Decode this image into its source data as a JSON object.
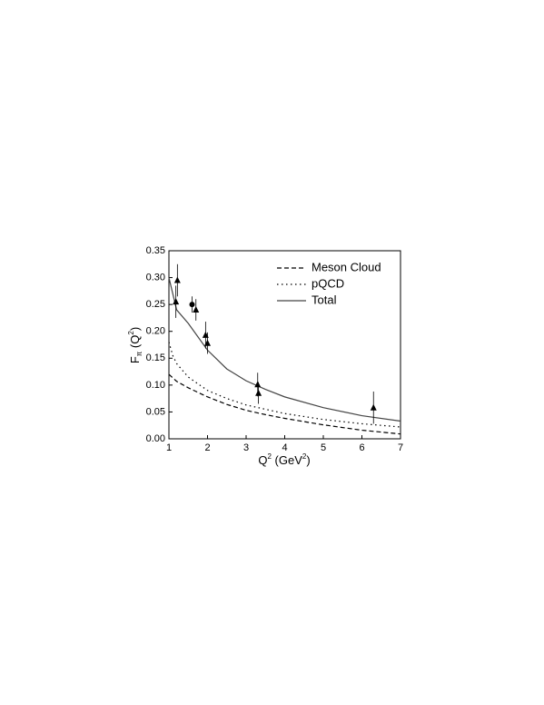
{
  "chart_data": {
    "type": "line",
    "x_label": [
      "Q",
      "2",
      " (GeV",
      "2",
      ")"
    ],
    "y_label": [
      "F",
      "π",
      " (Q",
      "2",
      ")"
    ],
    "xlim": [
      1,
      7
    ],
    "xticks": [
      1,
      2,
      3,
      4,
      5,
      6,
      7
    ],
    "ylim": [
      0,
      0.35
    ],
    "yticks": [
      {
        "value": 0,
        "label": "0.00"
      },
      {
        "value": 0.05,
        "label": "0.05"
      },
      {
        "value": 0.1,
        "label": "0.10"
      },
      {
        "value": 0.15,
        "label": "0.15"
      },
      {
        "value": 0.2,
        "label": "0.20"
      },
      {
        "value": 0.25,
        "label": "0.25"
      },
      {
        "value": 0.3,
        "label": "0.30"
      },
      {
        "value": 0.35,
        "label": "0.35"
      }
    ],
    "legend": "upper right",
    "series": [
      {
        "name": "Meson Cloud",
        "color": "#000000",
        "style": "dashed",
        "x": [
          1,
          1.2,
          1.5,
          2,
          2.5,
          3,
          3.5,
          4,
          5,
          6,
          7
        ],
        "values": [
          0.12,
          0.107,
          0.095,
          0.078,
          0.064,
          0.053,
          0.045,
          0.038,
          0.026,
          0.016,
          0.009
        ]
      },
      {
        "name": "pQCD",
        "color": "#000000",
        "style": "dotted",
        "x": [
          1,
          1.1,
          1.2,
          1.5,
          2,
          2.5,
          3,
          4,
          5,
          6,
          7
        ],
        "values": [
          0.18,
          0.155,
          0.14,
          0.115,
          0.09,
          0.075,
          0.063,
          0.047,
          0.036,
          0.028,
          0.022
        ]
      },
      {
        "name": "Total",
        "color": "#444444",
        "style": "solid",
        "x": [
          1,
          1.1,
          1.2,
          1.5,
          2,
          2.5,
          3,
          3.5,
          4,
          5,
          6,
          7
        ],
        "values": [
          0.3,
          0.27,
          0.24,
          0.215,
          0.165,
          0.13,
          0.108,
          0.092,
          0.078,
          0.058,
          0.043,
          0.033
        ]
      }
    ],
    "markers": [
      {
        "marker": "triangle",
        "color": "#000000",
        "x": [
          1.18,
          1.22,
          1.7,
          1.95,
          2.0,
          3.3,
          3.32,
          6.3
        ],
        "y": [
          0.255,
          0.295,
          0.24,
          0.193,
          0.178,
          0.101,
          0.085,
          0.058
        ],
        "err": [
          0.03,
          0.03,
          0.02,
          0.025,
          0.02,
          0.022,
          0.02,
          0.03
        ]
      },
      {
        "marker": "circle",
        "color": "#000000",
        "x": [
          1.6
        ],
        "y": [
          0.25
        ],
        "err": [
          0.015
        ]
      }
    ]
  }
}
